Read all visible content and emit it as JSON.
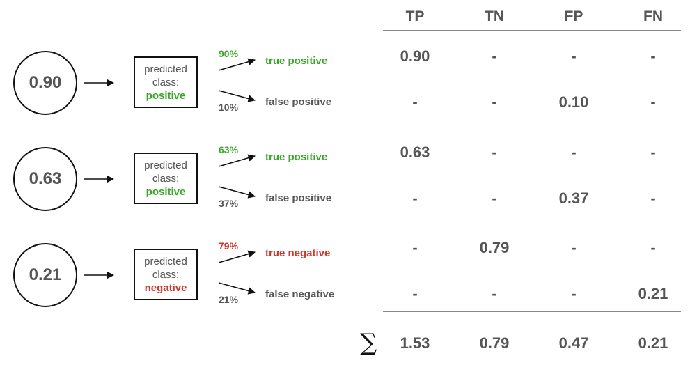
{
  "colors": {
    "positive": "#3aa62a",
    "negative": "#c8392b",
    "neutral": "#555555",
    "line": "#111111"
  },
  "table": {
    "headers": [
      "TP",
      "TN",
      "FP",
      "FN"
    ],
    "rows": [
      [
        "0.90",
        "-",
        "-",
        "-"
      ],
      [
        "-",
        "-",
        "0.10",
        "-"
      ],
      [
        "0.63",
        "-",
        "-",
        "-"
      ],
      [
        "-",
        "-",
        "0.37",
        "-"
      ],
      [
        "-",
        "0.79",
        "-",
        "-"
      ],
      [
        "-",
        "-",
        "-",
        "0.21"
      ]
    ],
    "sum_symbol": "∑",
    "totals": [
      "1.53",
      "0.79",
      "0.47",
      "0.21"
    ]
  },
  "examples": [
    {
      "score": "0.90",
      "predicted_label": "predicted class:",
      "predicted_class": "positive",
      "class_color": "positive",
      "top": {
        "pct": "90%",
        "label": "true positive",
        "color": "positive"
      },
      "bottom": {
        "pct": "10%",
        "label": "false positive",
        "color": "neutral"
      }
    },
    {
      "score": "0.63",
      "predicted_label": "predicted class:",
      "predicted_class": "positive",
      "class_color": "positive",
      "top": {
        "pct": "63%",
        "label": "true positive",
        "color": "positive"
      },
      "bottom": {
        "pct": "37%",
        "label": "false positive",
        "color": "neutral"
      }
    },
    {
      "score": "0.21",
      "predicted_label": "predicted class:",
      "predicted_class": "negative",
      "class_color": "negative",
      "top": {
        "pct": "79%",
        "label": "true negative",
        "color": "negative"
      },
      "bottom": {
        "pct": "21%",
        "label": "false negative",
        "color": "neutral"
      }
    }
  ]
}
